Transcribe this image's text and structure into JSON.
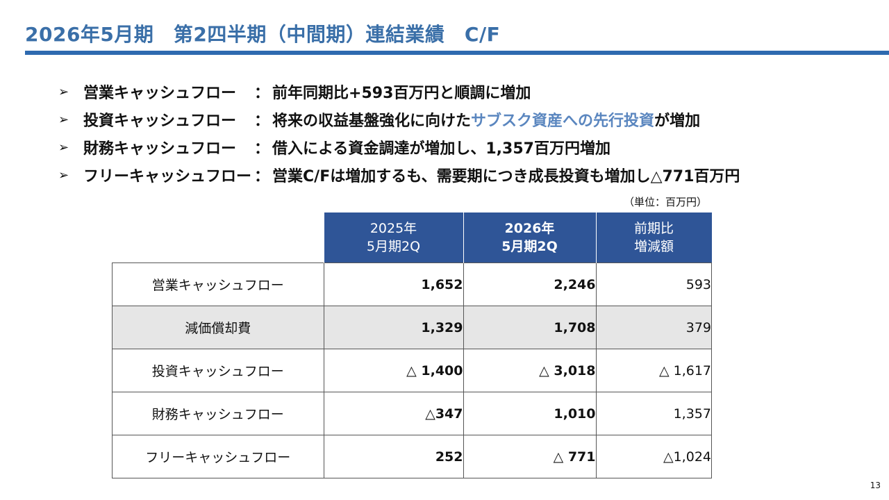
{
  "title": "2026年5月期　第2四半期（中間期）連結業績　C/F",
  "bullets": [
    {
      "marker": "➢",
      "label": "営業キャッシュフロー　",
      "colon": "：",
      "text_before": "前年同期比+593百万円と順調に増加",
      "highlight": "",
      "text_after": ""
    },
    {
      "marker": "➢",
      "label": "投資キャッシュフロー　",
      "colon": "：",
      "text_before": "将来の収益基盤強化に向けた",
      "highlight": "サブスク資産への先行投資",
      "text_after": "が増加"
    },
    {
      "marker": "➢",
      "label": "財務キャッシュフロー　",
      "colon": "：",
      "text_before": "借入による資金調達が増加し、1,357百万円増加",
      "highlight": "",
      "text_after": ""
    },
    {
      "marker": "➢",
      "label": "フリーキャッシュフロー",
      "colon": "：",
      "text_before": "営業C/Fは増加するも、需要期につき成長投資も増加し△771百万円",
      "highlight": "",
      "text_after": ""
    }
  ],
  "unit_note": "（単位：百万円）",
  "table": {
    "headers": [
      {
        "line1": "2025年",
        "line2": "5月期2Q"
      },
      {
        "line1": "2026年",
        "line2": "5月期2Q"
      },
      {
        "line1": "前期比",
        "line2": "増減額"
      }
    ],
    "rows": [
      {
        "label": "営業キャッシュフロー",
        "v2025": "1,652",
        "v2026": "2,246",
        "diff": "593"
      },
      {
        "label": "減価償却費",
        "v2025": "1,329",
        "v2026": "1,708",
        "diff": "379"
      },
      {
        "label": "投資キャッシュフロー",
        "v2025": "△ 1,400",
        "v2026": "△ 3,018",
        "diff": "△ 1,617"
      },
      {
        "label": "財務キャッシュフロー",
        "v2025": "△347",
        "v2026": "1,010",
        "diff": "1,357"
      },
      {
        "label": "フリーキャッシュフロー",
        "v2025": "252",
        "v2026": "△ 771",
        "diff": "△1,024"
      }
    ]
  },
  "page_number": "13",
  "colors": {
    "title": "#3a6fa8",
    "rule": "#2e6ab0",
    "header_bg": "#2f5597",
    "highlight": "#5a86bf",
    "shaded_row": "#e6e6e6"
  }
}
